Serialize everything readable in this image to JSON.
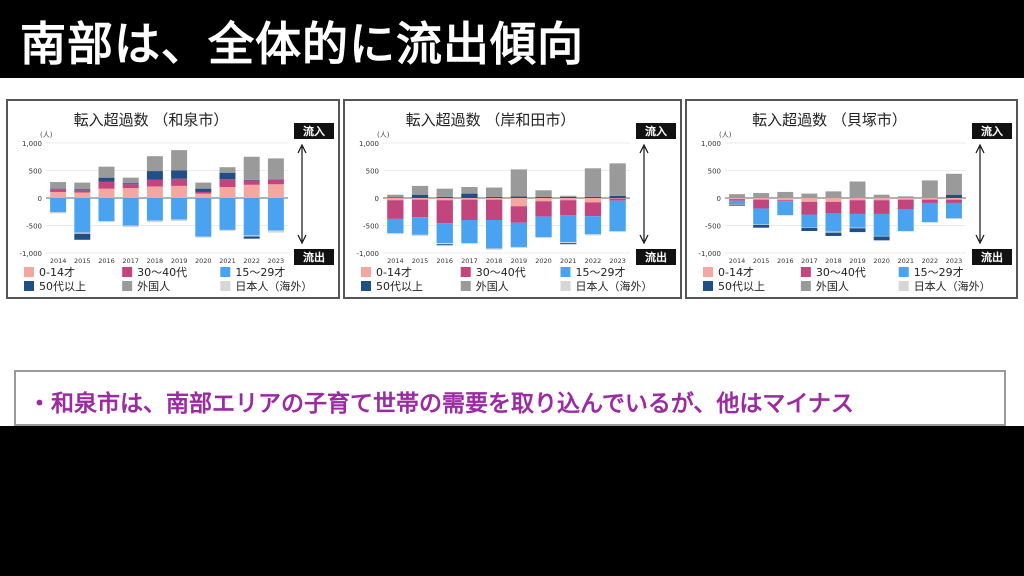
{
  "header": {
    "title": "南部は、全体的に流出傾向"
  },
  "note": {
    "text": "・和泉市は、南部エリアの子育て世帯の需要を取り込んでいるが、他はマイナス"
  },
  "common": {
    "unit": "(人)",
    "inflow_label": "流入",
    "outflow_label": "流出",
    "y_ticks": [
      "1,000",
      "500",
      "0",
      "-500",
      "-1,000"
    ],
    "legend": [
      {
        "label": "0-14才",
        "color": "#f4a6a0"
      },
      {
        "label": "30〜40代",
        "color": "#c2457e"
      },
      {
        "label": "15〜29才",
        "color": "#4aa3f0"
      },
      {
        "label": "50代以上",
        "color": "#1f4f85"
      },
      {
        "label": "外国人",
        "color": "#9a9a9a"
      },
      {
        "label": "日本人（海外）",
        "color": "#d6d6d6"
      }
    ]
  },
  "chart_data": [
    {
      "type": "bar",
      "stacked": true,
      "title": "転入超過数 （和泉市）",
      "categories": [
        "2014",
        "2015",
        "2016",
        "2017",
        "2018",
        "2019",
        "2020",
        "2021",
        "2022",
        "2023"
      ],
      "ylim": [
        -1000,
        1000
      ],
      "series": [
        {
          "name": "0-14才",
          "values": [
            110,
            100,
            170,
            180,
            210,
            220,
            80,
            200,
            240,
            250
          ]
        },
        {
          "name": "30〜40代",
          "values": [
            50,
            40,
            130,
            70,
            120,
            130,
            30,
            140,
            80,
            80
          ]
        },
        {
          "name": "50代以上",
          "values": [
            10,
            20,
            70,
            20,
            160,
            150,
            60,
            120,
            10,
            10
          ]
        },
        {
          "name": "外国人",
          "values": [
            120,
            120,
            200,
            100,
            270,
            370,
            110,
            100,
            420,
            380
          ]
        },
        {
          "name": "15〜29才",
          "values": [
            -260,
            -630,
            -420,
            -500,
            -410,
            -390,
            -700,
            -580,
            -680,
            -590
          ]
        },
        {
          "name": "日本人（海外）",
          "values": [
            -20,
            -20,
            -20,
            -30,
            -30,
            -30,
            -20,
            -20,
            -20,
            -40
          ]
        },
        {
          "name": "50代以上",
          "values": [
            0,
            -110,
            0,
            0,
            0,
            0,
            0,
            0,
            -40,
            0
          ]
        }
      ]
    },
    {
      "type": "bar",
      "stacked": true,
      "title": "転入超過数 （岸和田市）",
      "categories": [
        "2014",
        "2015",
        "2016",
        "2017",
        "2018",
        "2019",
        "2020",
        "2021",
        "2022",
        "2023"
      ],
      "ylim": [
        -1000,
        1000
      ],
      "series": [
        {
          "name": "0-14才",
          "values": [
            0,
            0,
            0,
            0,
            0,
            0,
            0,
            0,
            0,
            0
          ]
        },
        {
          "name": "30〜40代",
          "values": [
            0,
            0,
            0,
            0,
            0,
            0,
            0,
            0,
            0,
            0
          ]
        },
        {
          "name": "50代以上",
          "values": [
            10,
            60,
            20,
            80,
            20,
            30,
            20,
            20,
            20,
            40
          ]
        },
        {
          "name": "外国人",
          "values": [
            50,
            160,
            150,
            120,
            170,
            490,
            120,
            20,
            520,
            590
          ]
        },
        {
          "name": "0-14才",
          "values": [
            -40,
            -30,
            -40,
            -30,
            -30,
            -150,
            -60,
            -40,
            -80,
            -10
          ]
        },
        {
          "name": "30〜40代",
          "values": [
            -340,
            -320,
            -420,
            -370,
            -370,
            -300,
            -280,
            -270,
            -250,
            -40
          ]
        },
        {
          "name": "15〜29才",
          "values": [
            -260,
            -320,
            -360,
            -420,
            -520,
            -440,
            -370,
            -490,
            -330,
            -550
          ]
        },
        {
          "name": "日本人（海外）",
          "values": [
            -20,
            -20,
            -20,
            -20,
            -20,
            -20,
            -20,
            -20,
            -20,
            -20
          ]
        },
        {
          "name": "50代以上",
          "values": [
            0,
            0,
            -20,
            0,
            0,
            0,
            0,
            -20,
            0,
            0
          ]
        }
      ]
    },
    {
      "type": "bar",
      "stacked": true,
      "title": "転入超過数 （貝塚市）",
      "categories": [
        "2014",
        "2015",
        "2016",
        "2017",
        "2018",
        "2019",
        "2020",
        "2021",
        "2022",
        "2023"
      ],
      "ylim": [
        -1000,
        1000
      ],
      "series": [
        {
          "name": "50代以上",
          "values": [
            0,
            0,
            0,
            0,
            0,
            0,
            0,
            0,
            0,
            60
          ]
        },
        {
          "name": "外国人",
          "values": [
            70,
            90,
            110,
            80,
            120,
            300,
            60,
            30,
            320,
            380
          ]
        },
        {
          "name": "0-14才",
          "values": [
            -20,
            -30,
            -40,
            -70,
            -70,
            -40,
            -40,
            -30,
            -30,
            -30
          ]
        },
        {
          "name": "30〜40代",
          "values": [
            -30,
            -160,
            -20,
            -230,
            -210,
            -250,
            -250,
            -170,
            -60,
            -60
          ]
        },
        {
          "name": "15〜29才",
          "values": [
            -60,
            -290,
            -250,
            -230,
            -330,
            -250,
            -400,
            -400,
            -350,
            -280
          ]
        },
        {
          "name": "日本人（海外）",
          "values": [
            -10,
            -10,
            -10,
            -10,
            -20,
            -10,
            -10,
            -10,
            -10,
            -10
          ]
        },
        {
          "name": "50代以上",
          "values": [
            -20,
            -50,
            0,
            -60,
            -60,
            -70,
            -70,
            0,
            0,
            0
          ]
        }
      ]
    }
  ]
}
